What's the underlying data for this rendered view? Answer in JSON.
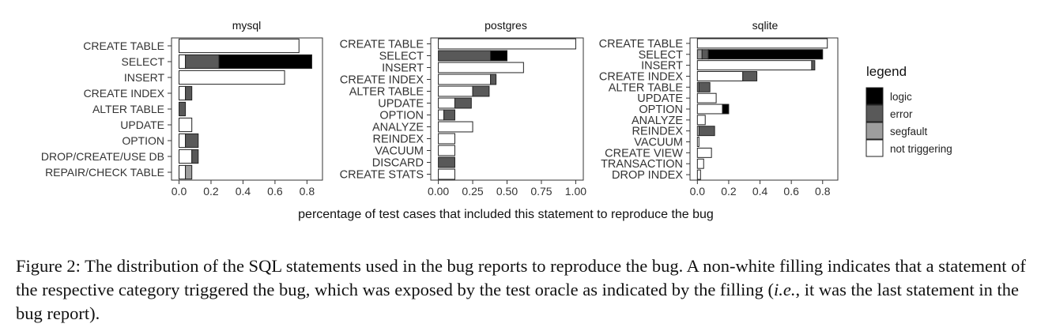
{
  "chart_data": {
    "type": "bar",
    "stacked": true,
    "xlabel": "percentage of test cases that included this statement to reproduce the bug",
    "legend": {
      "title": "legend",
      "placement": "right",
      "entries": [
        "logic",
        "error",
        "segfault",
        "not triggering"
      ]
    },
    "colors": {
      "logic": "#000000",
      "error": "#595959",
      "segfault": "#9e9e9e",
      "not triggering": "#ffffff"
    },
    "panels": [
      {
        "title": "mysql",
        "xlim": [
          0,
          0.85
        ],
        "xticks": [
          0.0,
          0.2,
          0.4,
          0.6,
          0.8
        ],
        "tick_labels": [
          "0.0",
          "0.2",
          "0.4",
          "0.6",
          "0.8"
        ],
        "categories": [
          "CREATE TABLE",
          "SELECT",
          "INSERT",
          "CREATE INDEX",
          "ALTER TABLE",
          "UPDATE",
          "OPTION",
          "DROP/CREATE/USE DB",
          "REPAIR/CHECK TABLE"
        ],
        "series": [
          {
            "name": "not triggering",
            "values": [
              0.75,
              0.04,
              0.66,
              0.04,
              0.0,
              0.08,
              0.04,
              0.08,
              0.04
            ]
          },
          {
            "name": "segfault",
            "values": [
              0.0,
              0.0,
              0.0,
              0.0,
              0.0,
              0.0,
              0.0,
              0.0,
              0.04
            ]
          },
          {
            "name": "error",
            "values": [
              0.0,
              0.21,
              0.0,
              0.04,
              0.04,
              0.0,
              0.08,
              0.04,
              0.0
            ]
          },
          {
            "name": "logic",
            "values": [
              0.0,
              0.58,
              0.0,
              0.0,
              0.0,
              0.0,
              0.0,
              0.0,
              0.0
            ]
          }
        ]
      },
      {
        "title": "postgres",
        "xlim": [
          0,
          1.0
        ],
        "xticks": [
          0.0,
          0.25,
          0.5,
          0.75,
          1.0
        ],
        "tick_labels": [
          "0.00",
          "0.25",
          "0.50",
          "0.75",
          "1.00"
        ],
        "categories": [
          "CREATE TABLE",
          "SELECT",
          "INSERT",
          "CREATE INDEX",
          "ALTER TABLE",
          "UPDATE",
          "OPTION",
          "ANALYZE",
          "REINDEX",
          "VACUUM",
          "DISCARD",
          "CREATE STATS"
        ],
        "series": [
          {
            "name": "not triggering",
            "values": [
              1.0,
              0.0,
              0.62,
              0.38,
              0.25,
              0.12,
              0.04,
              0.25,
              0.12,
              0.12,
              0.0,
              0.12
            ]
          },
          {
            "name": "segfault",
            "values": [
              0.0,
              0.0,
              0.0,
              0.0,
              0.0,
              0.0,
              0.0,
              0.0,
              0.0,
              0.0,
              0.0,
              0.0
            ]
          },
          {
            "name": "error",
            "values": [
              0.0,
              0.38,
              0.0,
              0.04,
              0.12,
              0.12,
              0.08,
              0.0,
              0.0,
              0.0,
              0.12,
              0.0
            ]
          },
          {
            "name": "logic",
            "values": [
              0.0,
              0.12,
              0.0,
              0.0,
              0.0,
              0.0,
              0.0,
              0.0,
              0.0,
              0.0,
              0.0,
              0.0
            ]
          }
        ]
      },
      {
        "title": "sqlite",
        "xlim": [
          0,
          0.85
        ],
        "xticks": [
          0.0,
          0.2,
          0.4,
          0.6,
          0.8
        ],
        "tick_labels": [
          "0.0",
          "0.2",
          "0.4",
          "0.6",
          "0.8"
        ],
        "categories": [
          "CREATE TABLE",
          "SELECT",
          "INSERT",
          "CREATE INDEX",
          "ALTER TABLE",
          "UPDATE",
          "OPTION",
          "ANALYZE",
          "REINDEX",
          "VACUUM",
          "CREATE VIEW",
          "TRANSACTION",
          "DROP INDEX"
        ],
        "series": [
          {
            "name": "not triggering",
            "values": [
              0.83,
              0.0,
              0.73,
              0.29,
              0.0,
              0.12,
              0.16,
              0.05,
              0.01,
              0.01,
              0.09,
              0.04,
              0.02
            ]
          },
          {
            "name": "segfault",
            "values": [
              0.0,
              0.03,
              0.0,
              0.0,
              0.01,
              0.0,
              0.0,
              0.0,
              0.0,
              0.0,
              0.0,
              0.0,
              0.0
            ]
          },
          {
            "name": "error",
            "values": [
              0.0,
              0.04,
              0.02,
              0.09,
              0.07,
              0.0,
              0.0,
              0.0,
              0.1,
              0.0,
              0.0,
              0.0,
              0.0
            ]
          },
          {
            "name": "logic",
            "values": [
              0.0,
              0.73,
              0.0,
              0.0,
              0.0,
              0.0,
              0.04,
              0.0,
              0.0,
              0.0,
              0.0,
              0.0,
              0.0
            ]
          }
        ]
      }
    ]
  },
  "caption": {
    "part1": "Figure 2: The distribution of the SQL statements used in the bug reports to reproduce the bug. A non-white filling indicates that a statement of the respective category triggered the bug, which was exposed by the test oracle as indicated by the filling (",
    "ie": "i.e.",
    "part2": ", it was the last statement in the bug report)."
  }
}
